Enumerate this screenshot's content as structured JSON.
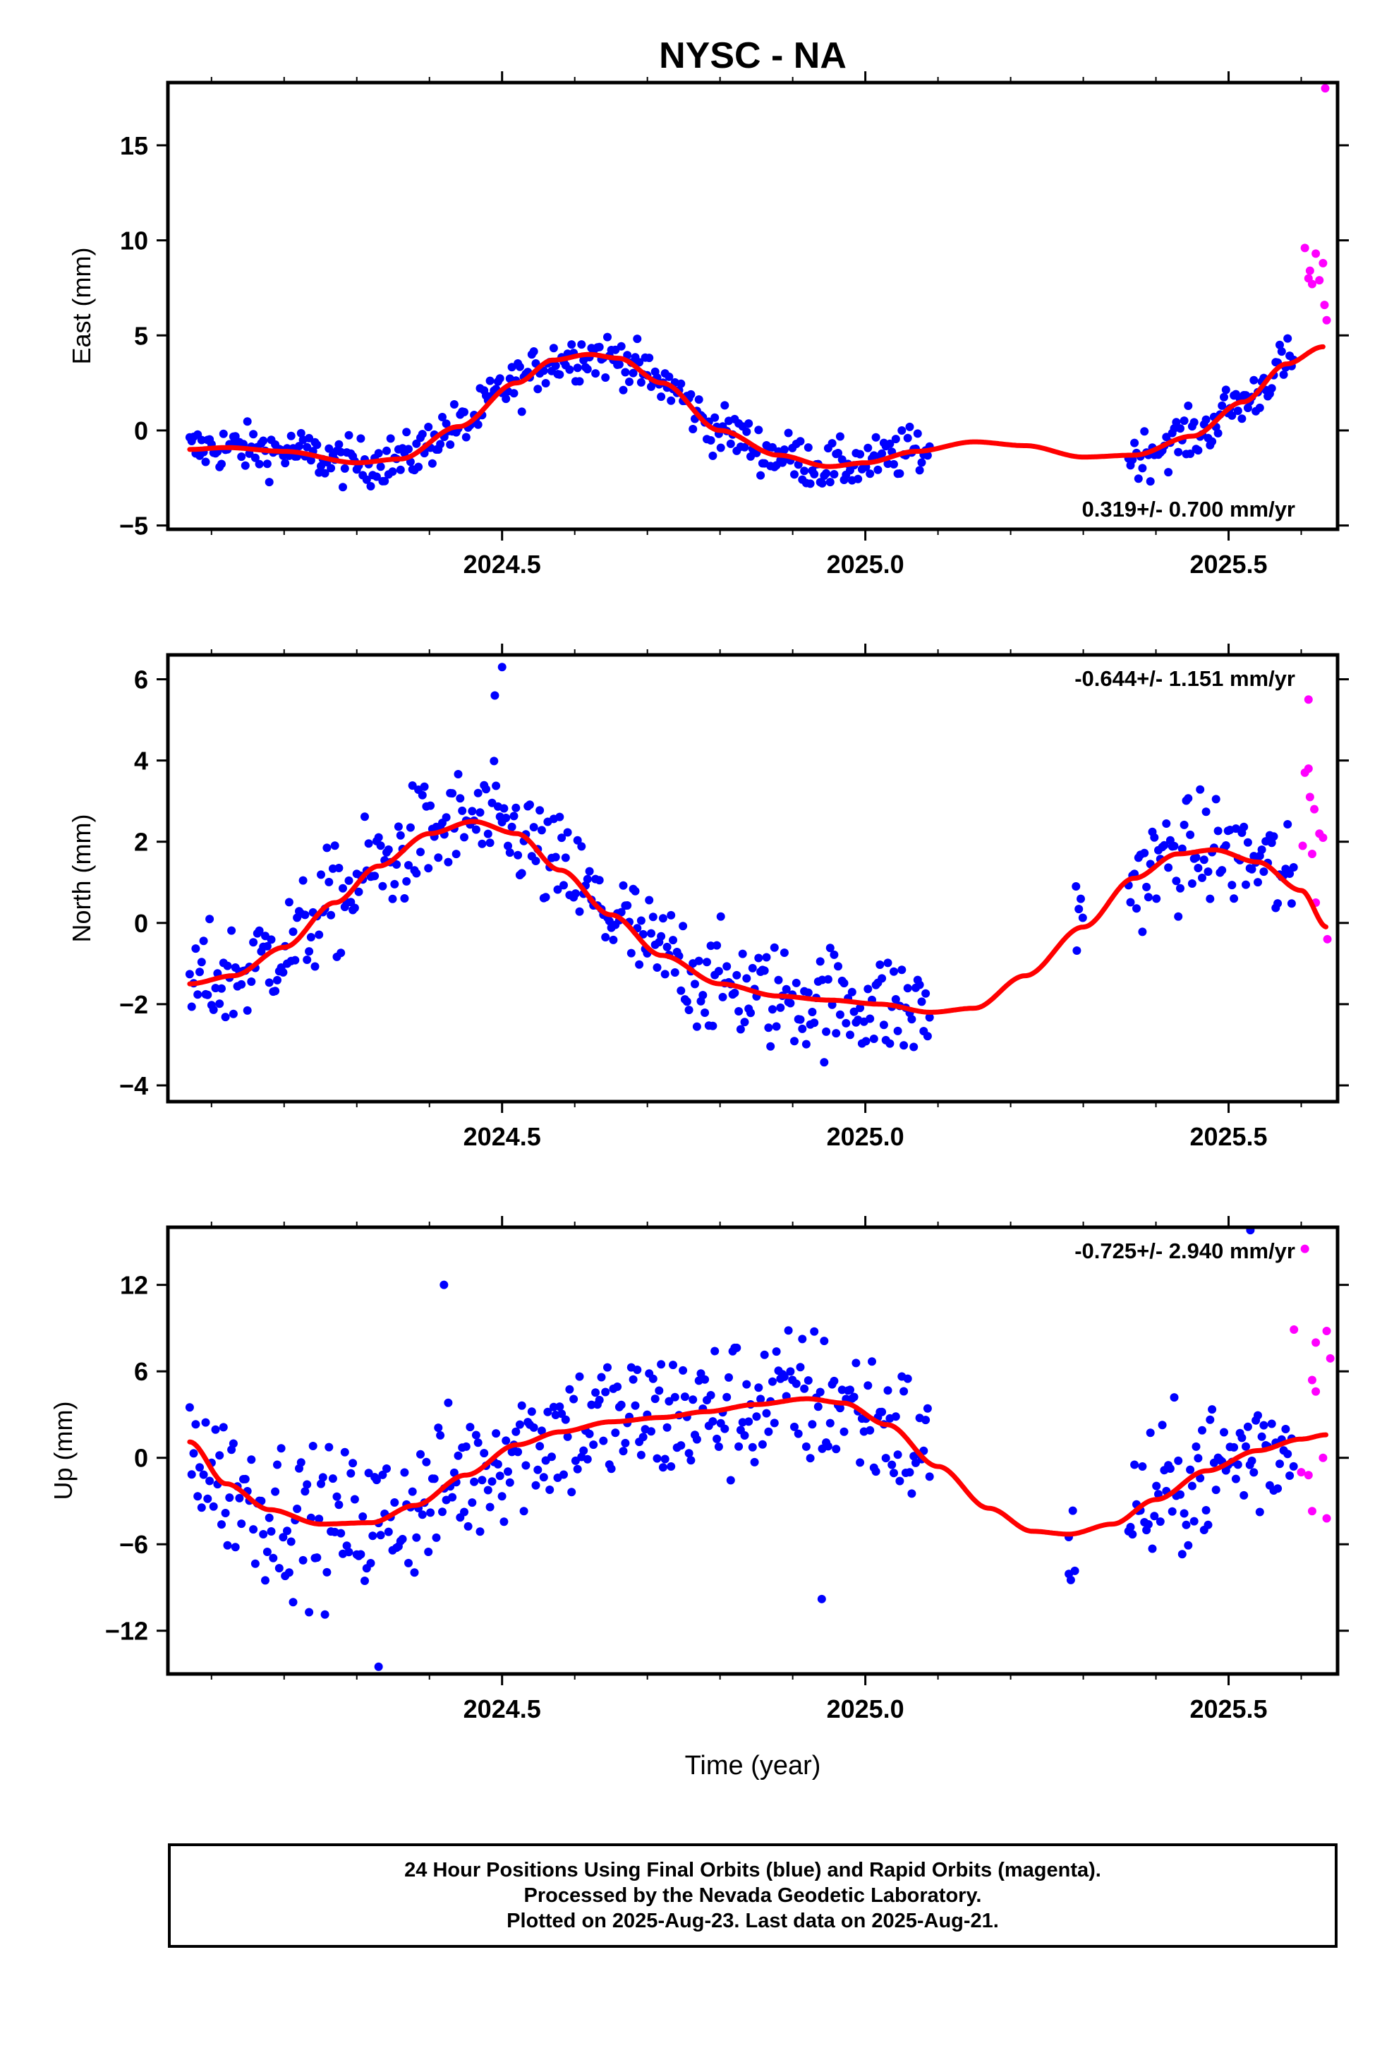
{
  "title": "NYSC - NA",
  "colors": {
    "final": "#0000ff",
    "rapid": "#ff00ff",
    "fit": "#ff0000"
  },
  "footer": {
    "line1": "24 Hour Positions Using Final Orbits (blue) and Rapid Orbits (magenta).",
    "line2": "Processed by the Nevada Geodetic Laboratory.",
    "line3": "Plotted on 2025-Aug-23. Last data on 2025-Aug-21."
  },
  "chart_data": [
    {
      "type": "scatter",
      "ylabel": "East (mm)",
      "xlabel": "",
      "xlim": [
        2024.04,
        2025.65
      ],
      "ylim": [
        -5.2,
        18.3
      ],
      "xticks": [
        2024.5,
        2025.0,
        2025.5
      ],
      "xtick_labels": [
        "2024.5",
        "2025.0",
        "2025.5"
      ],
      "yticks": [
        -5,
        0,
        5,
        10,
        15
      ],
      "ytick_labels": [
        "−5",
        "0",
        "5",
        "10",
        "15"
      ],
      "rate_label": "0.319+/- 0.700 mm/yr",
      "rate_position": "bottom-right",
      "gaps": [
        [
          2025.09,
          2025.36
        ]
      ],
      "trend": [
        -1.0,
        0.0
      ],
      "fit_knots": [
        [
          2024.07,
          -1.0
        ],
        [
          2024.12,
          -0.9
        ],
        [
          2024.2,
          -1.1
        ],
        [
          2024.3,
          -1.7
        ],
        [
          2024.36,
          -1.5
        ],
        [
          2024.44,
          0.2
        ],
        [
          2024.52,
          2.5
        ],
        [
          2024.57,
          3.7
        ],
        [
          2024.62,
          4.0
        ],
        [
          2024.66,
          3.8
        ],
        [
          2024.72,
          2.5
        ],
        [
          2024.8,
          0.0
        ],
        [
          2024.88,
          -1.3
        ],
        [
          2024.95,
          -1.9
        ],
        [
          2025.0,
          -1.7
        ],
        [
          2025.07,
          -1.1
        ],
        [
          2025.15,
          -0.6
        ],
        [
          2025.22,
          -0.8
        ],
        [
          2025.3,
          -1.4
        ],
        [
          2025.37,
          -1.3
        ],
        [
          2025.45,
          -0.3
        ],
        [
          2025.52,
          1.5
        ],
        [
          2025.58,
          3.5
        ],
        [
          2025.63,
          4.4
        ]
      ],
      "final_noise": 0.9,
      "rapid_points": [
        [
          2025.605,
          9.6
        ],
        [
          2025.61,
          8.0
        ],
        [
          2025.615,
          7.7
        ],
        [
          2025.62,
          9.3
        ],
        [
          2025.625,
          7.9
        ],
        [
          2025.63,
          8.8
        ],
        [
          2025.632,
          6.6
        ],
        [
          2025.635,
          5.8
        ],
        [
          2025.633,
          18.0
        ],
        [
          2025.612,
          8.4
        ]
      ],
      "series": [
        {
          "name": "Final Orbits",
          "color": "#0000ff"
        },
        {
          "name": "Rapid Orbits",
          "color": "#ff00ff"
        },
        {
          "name": "Fit",
          "color": "#ff0000"
        }
      ]
    },
    {
      "type": "scatter",
      "ylabel": "North (mm)",
      "xlabel": "",
      "xlim": [
        2024.04,
        2025.65
      ],
      "ylim": [
        -4.4,
        6.6
      ],
      "xticks": [
        2024.5,
        2025.0,
        2025.5
      ],
      "xtick_labels": [
        "2024.5",
        "2025.0",
        "2025.5"
      ],
      "yticks": [
        -4,
        -2,
        0,
        2,
        4,
        6
      ],
      "ytick_labels": [
        "−4",
        "−2",
        "0",
        "2",
        "4",
        "6"
      ],
      "rate_label": "-0.644+/- 1.151 mm/yr",
      "rate_position": "top-right",
      "gaps": [
        [
          2025.09,
          2025.29
        ],
        [
          2025.3,
          2025.36
        ]
      ],
      "fit_knots": [
        [
          2024.07,
          -1.5
        ],
        [
          2024.13,
          -1.3
        ],
        [
          2024.2,
          -0.6
        ],
        [
          2024.27,
          0.5
        ],
        [
          2024.33,
          1.4
        ],
        [
          2024.4,
          2.2
        ],
        [
          2024.46,
          2.5
        ],
        [
          2024.52,
          2.2
        ],
        [
          2024.58,
          1.3
        ],
        [
          2024.65,
          0.2
        ],
        [
          2024.72,
          -0.8
        ],
        [
          2024.8,
          -1.5
        ],
        [
          2024.88,
          -1.8
        ],
        [
          2024.95,
          -1.9
        ],
        [
          2025.02,
          -2.0
        ],
        [
          2025.09,
          -2.2
        ],
        [
          2025.15,
          -2.1
        ],
        [
          2025.22,
          -1.3
        ],
        [
          2025.3,
          -0.1
        ],
        [
          2025.37,
          1.1
        ],
        [
          2025.43,
          1.7
        ],
        [
          2025.48,
          1.8
        ],
        [
          2025.54,
          1.5
        ],
        [
          2025.6,
          0.8
        ],
        [
          2025.635,
          -0.1
        ]
      ],
      "final_noise": 0.95,
      "extra_points": [
        [
          2025.29,
          0.9
        ],
        [
          2024.5,
          6.3
        ],
        [
          2024.49,
          5.6
        ]
      ],
      "rapid_points": [
        [
          2025.61,
          5.5
        ],
        [
          2025.605,
          3.7
        ],
        [
          2025.612,
          3.1
        ],
        [
          2025.618,
          2.8
        ],
        [
          2025.625,
          2.2
        ],
        [
          2025.63,
          2.1
        ],
        [
          2025.615,
          1.7
        ],
        [
          2025.602,
          1.9
        ],
        [
          2025.62,
          0.5
        ],
        [
          2025.636,
          -0.4
        ],
        [
          2025.61,
          3.8
        ]
      ],
      "series": [
        {
          "name": "Final Orbits",
          "color": "#0000ff"
        },
        {
          "name": "Rapid Orbits",
          "color": "#ff00ff"
        },
        {
          "name": "Fit",
          "color": "#ff0000"
        }
      ]
    },
    {
      "type": "scatter",
      "ylabel": "Up (mm)",
      "xlabel": "Time (year)",
      "xlim": [
        2024.04,
        2025.65
      ],
      "ylim": [
        -15.0,
        16.0
      ],
      "xticks": [
        2024.5,
        2025.0,
        2025.5
      ],
      "xtick_labels": [
        "2024.5",
        "2025.0",
        "2025.5"
      ],
      "yticks": [
        -12,
        -6,
        0,
        6,
        12
      ],
      "ytick_labels": [
        "−12",
        "−6",
        "0",
        "6",
        "12"
      ],
      "rate_label": "-0.725+/- 2.940 mm/yr",
      "rate_position": "top-right",
      "gaps": [
        [
          2025.09,
          2025.28
        ],
        [
          2025.29,
          2025.36
        ]
      ],
      "fit_knots": [
        [
          2024.07,
          1.1
        ],
        [
          2024.12,
          -1.8
        ],
        [
          2024.18,
          -3.6
        ],
        [
          2024.25,
          -4.6
        ],
        [
          2024.32,
          -4.5
        ],
        [
          2024.38,
          -3.3
        ],
        [
          2024.45,
          -1.2
        ],
        [
          2024.52,
          0.9
        ],
        [
          2024.58,
          1.8
        ],
        [
          2024.65,
          2.5
        ],
        [
          2024.72,
          2.8
        ],
        [
          2024.78,
          3.2
        ],
        [
          2024.85,
          3.7
        ],
        [
          2024.92,
          4.1
        ],
        [
          2024.97,
          3.8
        ],
        [
          2025.03,
          2.3
        ],
        [
          2025.1,
          -0.6
        ],
        [
          2025.17,
          -3.5
        ],
        [
          2025.23,
          -5.1
        ],
        [
          2025.28,
          -5.3
        ],
        [
          2025.34,
          -4.6
        ],
        [
          2025.4,
          -2.9
        ],
        [
          2025.47,
          -0.9
        ],
        [
          2025.54,
          0.5
        ],
        [
          2025.6,
          1.3
        ],
        [
          2025.635,
          1.6
        ]
      ],
      "final_noise": 3.6,
      "extra_points": [
        [
          2025.28,
          -5.5
        ],
        [
          2025.53,
          15.8
        ],
        [
          2024.94,
          -9.8
        ],
        [
          2024.33,
          -14.5
        ],
        [
          2024.42,
          12.0
        ]
      ],
      "rapid_points": [
        [
          2025.605,
          14.5
        ],
        [
          2025.59,
          8.9
        ],
        [
          2025.62,
          8.0
        ],
        [
          2025.635,
          8.8
        ],
        [
          2025.64,
          6.9
        ],
        [
          2025.615,
          5.4
        ],
        [
          2025.62,
          4.6
        ],
        [
          2025.63,
          0.0
        ],
        [
          2025.61,
          -1.2
        ],
        [
          2025.6,
          -1.0
        ],
        [
          2025.615,
          -3.7
        ],
        [
          2025.635,
          -4.2
        ]
      ],
      "series": [
        {
          "name": "Final Orbits",
          "color": "#0000ff"
        },
        {
          "name": "Rapid Orbits",
          "color": "#ff00ff"
        },
        {
          "name": "Fit",
          "color": "#ff0000"
        }
      ]
    }
  ]
}
